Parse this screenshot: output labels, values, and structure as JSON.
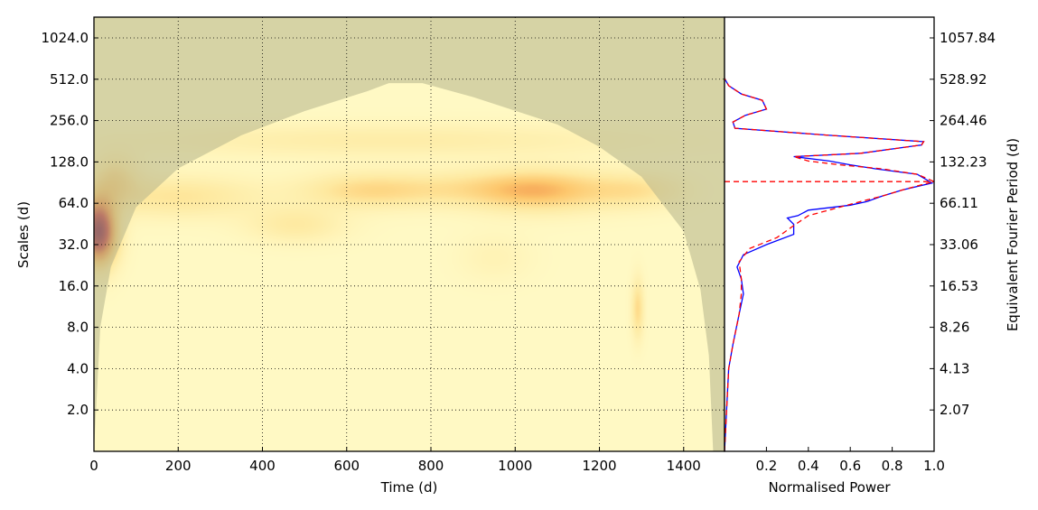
{
  "chart_data": [
    {
      "type": "heatmap",
      "title": "",
      "xlabel": "Time (d)",
      "ylabel": "Scales (d)",
      "xlim": [
        0,
        1497
      ],
      "ylim_log2": [
        1,
        1450
      ],
      "y_scale": "log2",
      "grid": true,
      "x_ticks": [
        0,
        200,
        400,
        600,
        800,
        1000,
        1200,
        1400
      ],
      "x_tick_labels": [
        "0",
        "200",
        "400",
        "600",
        "800",
        "1000",
        "1200",
        "1400"
      ],
      "y_ticks": [
        2,
        4,
        8,
        16,
        32,
        64,
        128,
        256,
        512,
        1024
      ],
      "y_tick_labels": [
        "2.0",
        "4.0",
        "8.0",
        "16.0",
        "32.0",
        "64.0",
        "128.0",
        "256.0",
        "512.0",
        "1024.0"
      ],
      "colormap": [
        "#fff9c4",
        "#fee9a0",
        "#fdc86e",
        "#f08b45",
        "#c0303a",
        "#7a0d3c"
      ],
      "blobs": [
        {
          "t": 10,
          "scale": 40,
          "power": 1.0,
          "t_width": 30,
          "log2_width": 0.55
        },
        {
          "t": 1060,
          "scale": 80,
          "power": 0.42,
          "t_width": 110,
          "log2_width": 0.35
        },
        {
          "t": 650,
          "scale": 80,
          "power": 0.28,
          "t_width": 110,
          "log2_width": 0.3
        },
        {
          "t": 200,
          "scale": 72,
          "power": 0.22,
          "t_width": 140,
          "log2_width": 0.35
        },
        {
          "t": 480,
          "scale": 45,
          "power": 0.18,
          "t_width": 80,
          "log2_width": 0.3
        },
        {
          "t": 880,
          "scale": 82,
          "power": 0.16,
          "t_width": 120,
          "log2_width": 0.3
        },
        {
          "t": 1290,
          "scale": 80,
          "power": 0.22,
          "t_width": 80,
          "log2_width": 0.3
        },
        {
          "t": 700,
          "scale": 185,
          "power": 0.15,
          "t_width": 450,
          "log2_width": 0.28
        },
        {
          "t": 1290,
          "scale": 11,
          "power": 0.28,
          "t_width": 10,
          "log2_width": 0.5
        },
        {
          "t": 50,
          "scale": 100,
          "power": 0.25,
          "t_width": 40,
          "log2_width": 0.4
        },
        {
          "t": 950,
          "scale": 26,
          "power": 0.08,
          "t_width": 60,
          "log2_width": 0.4
        }
      ],
      "cone_of_influence": {
        "color": "#b4b48c",
        "opacity": 0.55,
        "time": [
          0,
          15,
          40,
          100,
          200,
          350,
          500,
          650,
          700,
          780,
          900,
          1100,
          1200,
          1300,
          1400,
          1440,
          1460,
          1470
        ],
        "scale": [
          1,
          8,
          22,
          60,
          115,
          200,
          300,
          420,
          480,
          480,
          380,
          240,
          165,
          100,
          40,
          15,
          5,
          1
        ]
      }
    },
    {
      "type": "line",
      "title": "",
      "xlabel": "Normalised Power",
      "ylabel": "Equivalent Fourier Period (d)",
      "xlim": [
        0,
        1.0
      ],
      "y_scale": "log2",
      "x_ticks": [
        0.2,
        0.4,
        0.6,
        0.8,
        1.0
      ],
      "x_tick_labels": [
        "0.2",
        "0.4",
        "0.6",
        "0.8",
        "1.0"
      ],
      "y_ticks": [
        2.07,
        4.13,
        8.26,
        16.53,
        33.06,
        66.11,
        132.23,
        264.46,
        528.92,
        1057.84
      ],
      "y_tick_labels": [
        "2.07",
        "4.13",
        "8.26",
        "16.53",
        "33.06",
        "66.11",
        "132.23",
        "264.46",
        "528.92",
        "1057.84"
      ],
      "series": [
        {
          "color": "#0000ff",
          "style": "solid",
          "points": [
            [
              0.0,
              1.0
            ],
            [
              0.01,
              2.0
            ],
            [
              0.02,
              4.0
            ],
            [
              0.04,
              6.0
            ],
            [
              0.07,
              10.0
            ],
            [
              0.09,
              14.0
            ],
            [
              0.08,
              18.0
            ],
            [
              0.06,
              22.0
            ],
            [
              0.09,
              27.0
            ],
            [
              0.2,
              32.0
            ],
            [
              0.33,
              38.0
            ],
            [
              0.33,
              45.0
            ],
            [
              0.3,
              50.0
            ],
            [
              0.35,
              52.0
            ],
            [
              0.4,
              57.0
            ],
            [
              0.6,
              62.0
            ],
            [
              0.68,
              66.0
            ],
            [
              0.75,
              72.0
            ],
            [
              0.85,
              80.0
            ],
            [
              0.99,
              90.0
            ],
            [
              0.92,
              104.0
            ],
            [
              0.72,
              114.0
            ],
            [
              0.6,
              122.0
            ],
            [
              0.5,
              130.0
            ],
            [
              0.33,
              140.0
            ],
            [
              0.65,
              148.0
            ],
            [
              0.94,
              170.0
            ],
            [
              0.95,
              180.0
            ],
            [
              0.5,
              200.0
            ],
            [
              0.05,
              225.0
            ],
            [
              0.04,
              250.0
            ],
            [
              0.1,
              280.0
            ],
            [
              0.2,
              310.0
            ],
            [
              0.18,
              360.0
            ],
            [
              0.08,
              400.0
            ],
            [
              0.02,
              460.0
            ],
            [
              0.0,
              520.0
            ]
          ]
        },
        {
          "color": "#ff0000",
          "style": "dashed",
          "points": [
            [
              0.0,
              1.0
            ],
            [
              0.01,
              2.0
            ],
            [
              0.02,
              4.0
            ],
            [
              0.04,
              6.0
            ],
            [
              0.07,
              10.0
            ],
            [
              0.08,
              14.0
            ],
            [
              0.08,
              18.0
            ],
            [
              0.07,
              24.0
            ],
            [
              0.12,
              30.0
            ],
            [
              0.25,
              36.0
            ],
            [
              0.33,
              44.0
            ],
            [
              0.4,
              52.0
            ],
            [
              0.55,
              60.0
            ],
            [
              0.65,
              66.0
            ],
            [
              0.75,
              72.0
            ],
            [
              0.85,
              80.0
            ],
            [
              0.95,
              88.0
            ],
            [
              1.0,
              92.0
            ],
            [
              0.92,
              104.0
            ],
            [
              0.75,
              114.0
            ],
            [
              0.55,
              122.0
            ],
            [
              0.4,
              130.0
            ],
            [
              0.33,
              140.0
            ],
            [
              0.65,
              148.0
            ],
            [
              0.94,
              170.0
            ],
            [
              0.95,
              180.0
            ],
            [
              0.5,
              200.0
            ],
            [
              0.05,
              225.0
            ],
            [
              0.04,
              250.0
            ],
            [
              0.1,
              280.0
            ],
            [
              0.2,
              310.0
            ],
            [
              0.18,
              360.0
            ],
            [
              0.08,
              400.0
            ],
            [
              0.02,
              460.0
            ],
            [
              0.0,
              520.0
            ]
          ]
        },
        {
          "color": "#ff0000",
          "style": "dashed",
          "points": [
            [
              0.0,
              92.0
            ],
            [
              1.0,
              92.0
            ]
          ]
        }
      ]
    }
  ]
}
